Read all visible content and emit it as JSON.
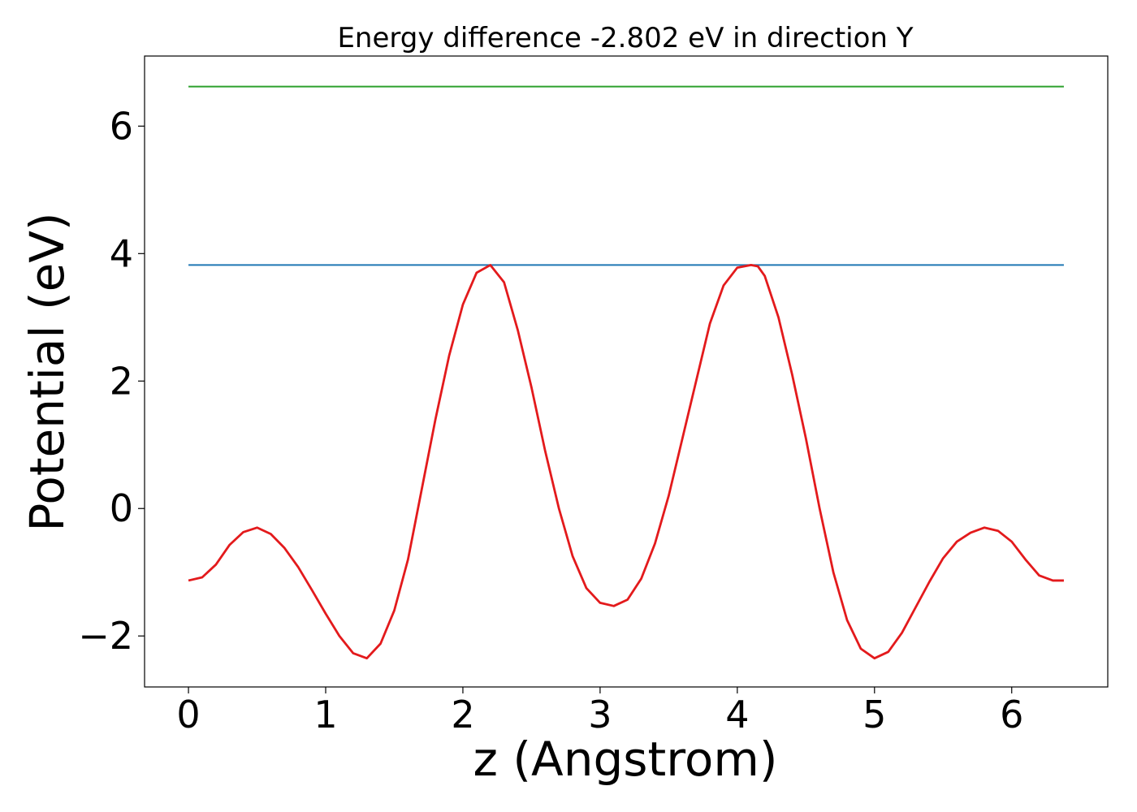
{
  "chart_data": {
    "type": "line",
    "title": "Energy difference -2.802 eV in direction Y",
    "xlabel": "z (Angstrom)",
    "ylabel": "Potential (eV)",
    "xlim": [
      -0.32,
      6.7
    ],
    "ylim": [
      -2.8,
      7.1
    ],
    "x_ticks": [
      0,
      1,
      2,
      3,
      4,
      5,
      6
    ],
    "y_ticks": [
      -2,
      0,
      2,
      4,
      6
    ],
    "x_tick_labels": [
      "0",
      "1",
      "2",
      "3",
      "4",
      "5",
      "6"
    ],
    "y_tick_labels": [
      "−2",
      "0",
      "2",
      "4",
      "6"
    ],
    "grid": false,
    "series": [
      {
        "color": "#2ca02c",
        "x": [
          0,
          6.38
        ],
        "y": [
          6.62,
          6.62
        ]
      },
      {
        "color": "#1f77b4",
        "x": [
          0,
          6.38
        ],
        "y": [
          3.82,
          3.82
        ]
      },
      {
        "color": "#e31a1c",
        "x": [
          0,
          0.1,
          0.2,
          0.3,
          0.4,
          0.5,
          0.6,
          0.7,
          0.8,
          0.9,
          1.0,
          1.1,
          1.2,
          1.3,
          1.4,
          1.5,
          1.6,
          1.7,
          1.8,
          1.9,
          2.0,
          2.1,
          2.2,
          2.3,
          2.4,
          2.5,
          2.6,
          2.7,
          2.8,
          2.9,
          3.0,
          3.1,
          3.2,
          3.3,
          3.4,
          3.5,
          3.6,
          3.7,
          3.8,
          3.9,
          4.0,
          4.1,
          4.15,
          4.2,
          4.3,
          4.4,
          4.5,
          4.6,
          4.7,
          4.8,
          4.9,
          5.0,
          5.1,
          5.2,
          5.3,
          5.4,
          5.5,
          5.6,
          5.7,
          5.8,
          5.9,
          6.0,
          6.1,
          6.2,
          6.3,
          6.38
        ],
        "y": [
          -1.13,
          -1.08,
          -0.88,
          -0.57,
          -0.37,
          -0.3,
          -0.4,
          -0.62,
          -0.92,
          -1.28,
          -1.65,
          -2.0,
          -2.27,
          -2.35,
          -2.12,
          -1.6,
          -0.8,
          0.3,
          1.4,
          2.4,
          3.2,
          3.7,
          3.82,
          3.55,
          2.8,
          1.9,
          0.9,
          0.0,
          -0.75,
          -1.25,
          -1.48,
          -1.53,
          -1.43,
          -1.1,
          -0.55,
          0.2,
          1.1,
          2.0,
          2.9,
          3.5,
          3.78,
          3.82,
          3.8,
          3.65,
          3.0,
          2.1,
          1.1,
          0.0,
          -1.0,
          -1.75,
          -2.2,
          -2.35,
          -2.25,
          -1.95,
          -1.55,
          -1.15,
          -0.78,
          -0.52,
          -0.38,
          -0.3,
          -0.35,
          -0.52,
          -0.8,
          -1.05,
          -1.13,
          -1.13
        ]
      }
    ]
  }
}
